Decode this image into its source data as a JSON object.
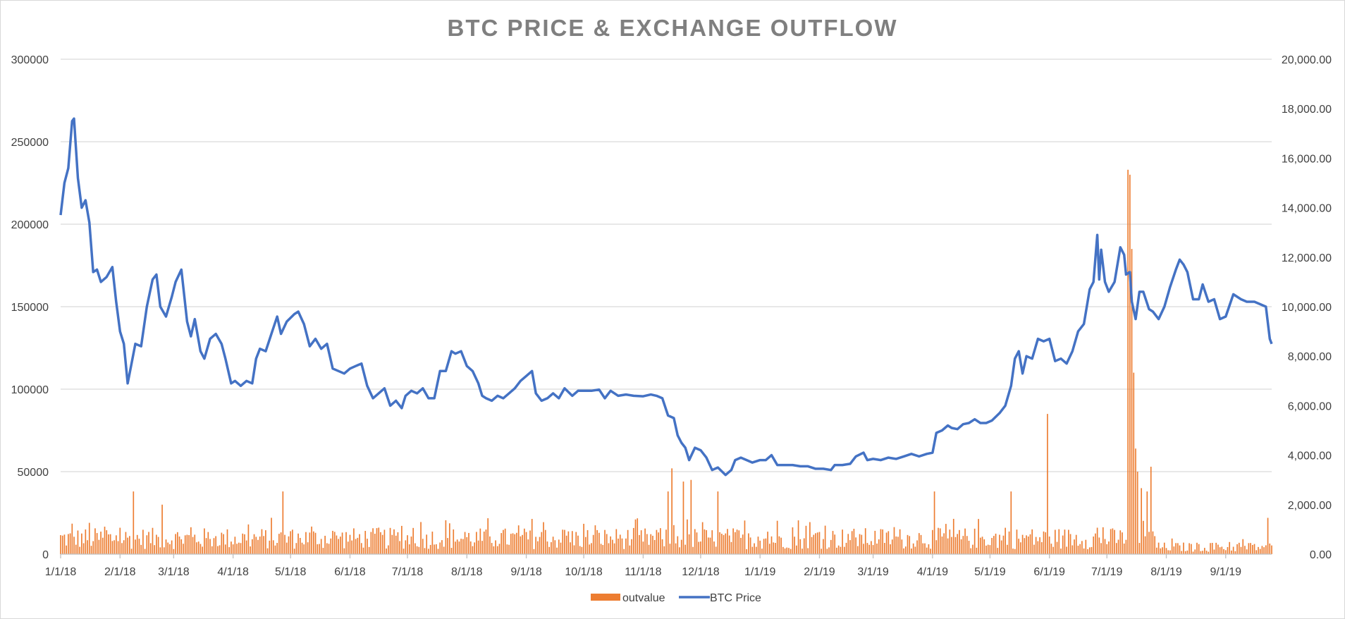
{
  "chart_data": {
    "type": "bar+line",
    "title": "BTC PRICE & EXCHANGE OUTFLOW",
    "x_tick_labels": [
      "1/1/18",
      "2/1/18",
      "3/1/18",
      "4/1/18",
      "5/1/18",
      "6/1/18",
      "7/1/18",
      "8/1/18",
      "9/1/18",
      "10/1/18",
      "11/1/18",
      "12/1/18",
      "1/1/19",
      "2/1/19",
      "3/1/19",
      "4/1/19",
      "5/1/19",
      "6/1/19",
      "7/1/19",
      "8/1/19",
      "9/1/19"
    ],
    "x_range": [
      "2018-01-01",
      "2019-09-25"
    ],
    "y_left": {
      "ticks": [
        "0",
        "50000",
        "100000",
        "150000",
        "200000",
        "250000",
        "300000"
      ],
      "range": [
        0,
        300000
      ]
    },
    "y_right": {
      "ticks": [
        "0.00",
        "2,000.00",
        "4,000.00",
        "6,000.00",
        "8,000.00",
        "10,000.00",
        "12,000.00",
        "14,000.00",
        "16,000.00",
        "18,000.00",
        "20,000.00"
      ],
      "range": [
        0,
        20000
      ]
    },
    "grid": true,
    "legend_position": "bottom",
    "series": [
      {
        "name": "outvalue",
        "type": "bar",
        "axis": "left",
        "color": "#ed7d31",
        "baseline_range": [
          3000,
          16000
        ],
        "spikes": [
          {
            "date": "2018-02-08",
            "value": 38000
          },
          {
            "date": "2018-02-23",
            "value": 30000
          },
          {
            "date": "2018-04-27",
            "value": 38000
          },
          {
            "date": "2018-11-14",
            "value": 38000
          },
          {
            "date": "2018-11-16",
            "value": 52000
          },
          {
            "date": "2018-11-22",
            "value": 44000
          },
          {
            "date": "2018-11-26",
            "value": 45000
          },
          {
            "date": "2018-12-10",
            "value": 38000
          },
          {
            "date": "2019-04-02",
            "value": 38000
          },
          {
            "date": "2019-05-12",
            "value": 38000
          },
          {
            "date": "2019-05-31",
            "value": 85000
          },
          {
            "date": "2019-07-12",
            "value": 233000
          },
          {
            "date": "2019-07-13",
            "value": 230000
          },
          {
            "date": "2019-07-14",
            "value": 185000
          },
          {
            "date": "2019-07-15",
            "value": 110000
          },
          {
            "date": "2019-07-16",
            "value": 64000
          },
          {
            "date": "2019-07-17",
            "value": 50000
          },
          {
            "date": "2019-07-19",
            "value": 40000
          },
          {
            "date": "2019-07-22",
            "value": 38000
          },
          {
            "date": "2019-07-24",
            "value": 53000
          },
          {
            "date": "2019-09-23",
            "value": 22000
          }
        ]
      },
      {
        "name": "BTC Price",
        "type": "line",
        "axis": "right",
        "color": "#4472c4",
        "points": [
          [
            "2018-01-01",
            13700
          ],
          [
            "2018-01-03",
            15000
          ],
          [
            "2018-01-05",
            15600
          ],
          [
            "2018-01-07",
            17500
          ],
          [
            "2018-01-08",
            17600
          ],
          [
            "2018-01-10",
            15200
          ],
          [
            "2018-01-12",
            14000
          ],
          [
            "2018-01-14",
            14300
          ],
          [
            "2018-01-16",
            13400
          ],
          [
            "2018-01-18",
            11400
          ],
          [
            "2018-01-20",
            11500
          ],
          [
            "2018-01-22",
            11000
          ],
          [
            "2018-01-25",
            11200
          ],
          [
            "2018-01-28",
            11600
          ],
          [
            "2018-01-30",
            10200
          ],
          [
            "2018-02-01",
            9000
          ],
          [
            "2018-02-03",
            8500
          ],
          [
            "2018-02-05",
            6900
          ],
          [
            "2018-02-07",
            7700
          ],
          [
            "2018-02-09",
            8500
          ],
          [
            "2018-02-12",
            8400
          ],
          [
            "2018-02-15",
            10000
          ],
          [
            "2018-02-18",
            11100
          ],
          [
            "2018-02-20",
            11300
          ],
          [
            "2018-02-22",
            10000
          ],
          [
            "2018-02-25",
            9600
          ],
          [
            "2018-02-28",
            10400
          ],
          [
            "2018-03-02",
            11000
          ],
          [
            "2018-03-05",
            11500
          ],
          [
            "2018-03-08",
            9400
          ],
          [
            "2018-03-10",
            8800
          ],
          [
            "2018-03-12",
            9500
          ],
          [
            "2018-03-15",
            8200
          ],
          [
            "2018-03-17",
            7900
          ],
          [
            "2018-03-20",
            8700
          ],
          [
            "2018-03-23",
            8900
          ],
          [
            "2018-03-26",
            8500
          ],
          [
            "2018-03-28",
            7900
          ],
          [
            "2018-03-31",
            6900
          ],
          [
            "2018-04-02",
            7000
          ],
          [
            "2018-04-05",
            6800
          ],
          [
            "2018-04-08",
            7000
          ],
          [
            "2018-04-11",
            6900
          ],
          [
            "2018-04-13",
            7900
          ],
          [
            "2018-04-15",
            8300
          ],
          [
            "2018-04-18",
            8200
          ],
          [
            "2018-04-21",
            8900
          ],
          [
            "2018-04-24",
            9600
          ],
          [
            "2018-04-26",
            8900
          ],
          [
            "2018-04-29",
            9400
          ],
          [
            "2018-05-03",
            9700
          ],
          [
            "2018-05-05",
            9800
          ],
          [
            "2018-05-08",
            9300
          ],
          [
            "2018-05-11",
            8400
          ],
          [
            "2018-05-14",
            8700
          ],
          [
            "2018-05-17",
            8300
          ],
          [
            "2018-05-20",
            8500
          ],
          [
            "2018-05-23",
            7500
          ],
          [
            "2018-05-26",
            7400
          ],
          [
            "2018-05-29",
            7300
          ],
          [
            "2018-06-01",
            7500
          ],
          [
            "2018-06-04",
            7600
          ],
          [
            "2018-06-07",
            7700
          ],
          [
            "2018-06-10",
            6800
          ],
          [
            "2018-06-13",
            6300
          ],
          [
            "2018-06-16",
            6500
          ],
          [
            "2018-06-19",
            6700
          ],
          [
            "2018-06-22",
            6000
          ],
          [
            "2018-06-25",
            6200
          ],
          [
            "2018-06-28",
            5900
          ],
          [
            "2018-06-30",
            6400
          ],
          [
            "2018-07-03",
            6600
          ],
          [
            "2018-07-06",
            6500
          ],
          [
            "2018-07-09",
            6700
          ],
          [
            "2018-07-12",
            6300
          ],
          [
            "2018-07-15",
            6300
          ],
          [
            "2018-07-18",
            7400
          ],
          [
            "2018-07-21",
            7400
          ],
          [
            "2018-07-24",
            8200
          ],
          [
            "2018-07-26",
            8100
          ],
          [
            "2018-07-29",
            8200
          ],
          [
            "2018-08-01",
            7600
          ],
          [
            "2018-08-04",
            7400
          ],
          [
            "2018-08-07",
            6900
          ],
          [
            "2018-08-09",
            6400
          ],
          [
            "2018-08-11",
            6300
          ],
          [
            "2018-08-14",
            6200
          ],
          [
            "2018-08-17",
            6400
          ],
          [
            "2018-08-20",
            6300
          ],
          [
            "2018-08-23",
            6500
          ],
          [
            "2018-08-26",
            6700
          ],
          [
            "2018-08-29",
            7000
          ],
          [
            "2018-09-01",
            7200
          ],
          [
            "2018-09-04",
            7400
          ],
          [
            "2018-09-06",
            6500
          ],
          [
            "2018-09-09",
            6200
          ],
          [
            "2018-09-12",
            6300
          ],
          [
            "2018-09-15",
            6500
          ],
          [
            "2018-09-18",
            6300
          ],
          [
            "2018-09-21",
            6700
          ],
          [
            "2018-09-25",
            6400
          ],
          [
            "2018-09-28",
            6600
          ],
          [
            "2018-10-01",
            6600
          ],
          [
            "2018-10-05",
            6600
          ],
          [
            "2018-10-09",
            6650
          ],
          [
            "2018-10-12",
            6300
          ],
          [
            "2018-10-15",
            6600
          ],
          [
            "2018-10-19",
            6400
          ],
          [
            "2018-10-23",
            6450
          ],
          [
            "2018-10-27",
            6400
          ],
          [
            "2018-11-01",
            6380
          ],
          [
            "2018-11-05",
            6450
          ],
          [
            "2018-11-08",
            6400
          ],
          [
            "2018-11-11",
            6300
          ],
          [
            "2018-11-14",
            5600
          ],
          [
            "2018-11-17",
            5500
          ],
          [
            "2018-11-19",
            4800
          ],
          [
            "2018-11-21",
            4500
          ],
          [
            "2018-11-23",
            4300
          ],
          [
            "2018-11-25",
            3800
          ],
          [
            "2018-11-28",
            4300
          ],
          [
            "2018-12-01",
            4200
          ],
          [
            "2018-12-04",
            3900
          ],
          [
            "2018-12-07",
            3400
          ],
          [
            "2018-12-10",
            3500
          ],
          [
            "2018-12-14",
            3200
          ],
          [
            "2018-12-17",
            3400
          ],
          [
            "2018-12-19",
            3800
          ],
          [
            "2018-12-22",
            3900
          ],
          [
            "2018-12-25",
            3800
          ],
          [
            "2018-12-28",
            3700
          ],
          [
            "2019-01-01",
            3800
          ],
          [
            "2019-01-04",
            3800
          ],
          [
            "2019-01-07",
            4000
          ],
          [
            "2019-01-10",
            3600
          ],
          [
            "2019-01-14",
            3600
          ],
          [
            "2019-01-18",
            3600
          ],
          [
            "2019-01-22",
            3550
          ],
          [
            "2019-01-26",
            3550
          ],
          [
            "2019-01-30",
            3450
          ],
          [
            "2019-02-03",
            3450
          ],
          [
            "2019-02-07",
            3400
          ],
          [
            "2019-02-09",
            3600
          ],
          [
            "2019-02-13",
            3600
          ],
          [
            "2019-02-17",
            3650
          ],
          [
            "2019-02-20",
            3950
          ],
          [
            "2019-02-24",
            4100
          ],
          [
            "2019-02-26",
            3800
          ],
          [
            "2019-03-01",
            3850
          ],
          [
            "2019-03-05",
            3800
          ],
          [
            "2019-03-09",
            3900
          ],
          [
            "2019-03-13",
            3850
          ],
          [
            "2019-03-17",
            3950
          ],
          [
            "2019-03-21",
            4050
          ],
          [
            "2019-03-25",
            3950
          ],
          [
            "2019-03-29",
            4050
          ],
          [
            "2019-04-01",
            4100
          ],
          [
            "2019-04-03",
            4900
          ],
          [
            "2019-04-06",
            5000
          ],
          [
            "2019-04-09",
            5200
          ],
          [
            "2019-04-11",
            5100
          ],
          [
            "2019-04-14",
            5050
          ],
          [
            "2019-04-17",
            5250
          ],
          [
            "2019-04-20",
            5300
          ],
          [
            "2019-04-23",
            5450
          ],
          [
            "2019-04-26",
            5300
          ],
          [
            "2019-04-29",
            5300
          ],
          [
            "2019-05-02",
            5400
          ],
          [
            "2019-05-06",
            5700
          ],
          [
            "2019-05-09",
            6000
          ],
          [
            "2019-05-12",
            6800
          ],
          [
            "2019-05-14",
            7900
          ],
          [
            "2019-05-16",
            8200
          ],
          [
            "2019-05-18",
            7300
          ],
          [
            "2019-05-20",
            8000
          ],
          [
            "2019-05-23",
            7900
          ],
          [
            "2019-05-26",
            8700
          ],
          [
            "2019-05-29",
            8600
          ],
          [
            "2019-06-01",
            8700
          ],
          [
            "2019-06-04",
            7800
          ],
          [
            "2019-06-07",
            7900
          ],
          [
            "2019-06-10",
            7700
          ],
          [
            "2019-06-13",
            8200
          ],
          [
            "2019-06-16",
            9000
          ],
          [
            "2019-06-19",
            9300
          ],
          [
            "2019-06-22",
            10700
          ],
          [
            "2019-06-24",
            11000
          ],
          [
            "2019-06-26",
            12900
          ],
          [
            "2019-06-27",
            11100
          ],
          [
            "2019-06-28",
            12300
          ],
          [
            "2019-06-30",
            11000
          ],
          [
            "2019-07-02",
            10600
          ],
          [
            "2019-07-05",
            11000
          ],
          [
            "2019-07-08",
            12400
          ],
          [
            "2019-07-10",
            12100
          ],
          [
            "2019-07-11",
            11300
          ],
          [
            "2019-07-13",
            11400
          ],
          [
            "2019-07-14",
            10200
          ],
          [
            "2019-07-16",
            9500
          ],
          [
            "2019-07-18",
            10600
          ],
          [
            "2019-07-20",
            10600
          ],
          [
            "2019-07-23",
            9900
          ],
          [
            "2019-07-25",
            9800
          ],
          [
            "2019-07-28",
            9500
          ],
          [
            "2019-07-31",
            10000
          ],
          [
            "2019-08-03",
            10800
          ],
          [
            "2019-08-06",
            11500
          ],
          [
            "2019-08-08",
            11900
          ],
          [
            "2019-08-10",
            11700
          ],
          [
            "2019-08-12",
            11400
          ],
          [
            "2019-08-15",
            10300
          ],
          [
            "2019-08-18",
            10300
          ],
          [
            "2019-08-20",
            10900
          ],
          [
            "2019-08-23",
            10200
          ],
          [
            "2019-08-26",
            10300
          ],
          [
            "2019-08-29",
            9500
          ],
          [
            "2019-09-01",
            9600
          ],
          [
            "2019-09-05",
            10500
          ],
          [
            "2019-09-09",
            10300
          ],
          [
            "2019-09-12",
            10200
          ],
          [
            "2019-09-16",
            10200
          ],
          [
            "2019-09-19",
            10100
          ],
          [
            "2019-09-22",
            10000
          ],
          [
            "2019-09-24",
            8700
          ],
          [
            "2019-09-25",
            8500
          ]
        ]
      }
    ]
  }
}
